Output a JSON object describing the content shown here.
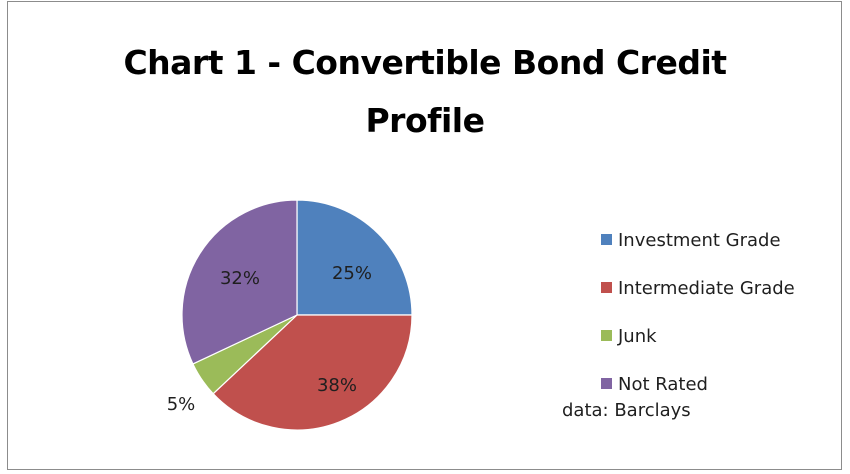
{
  "chart_data": {
    "type": "pie",
    "title_lines": [
      "Chart 1 - Convertible Bond Credit",
      "Profile"
    ],
    "categories": [
      "Investment Grade",
      "Intermediate Grade",
      "Junk",
      "Not Rated"
    ],
    "values": [
      25,
      38,
      5,
      32
    ],
    "value_labels": [
      "25%",
      "38%",
      "5%",
      "32%"
    ],
    "colors": [
      "#4f81bd",
      "#c0504d",
      "#9bbb59",
      "#8064a2"
    ],
    "legend_position": "right",
    "start_angle": "12 o'clock",
    "direction": "clockwise"
  },
  "source_note": "data: Barclays"
}
